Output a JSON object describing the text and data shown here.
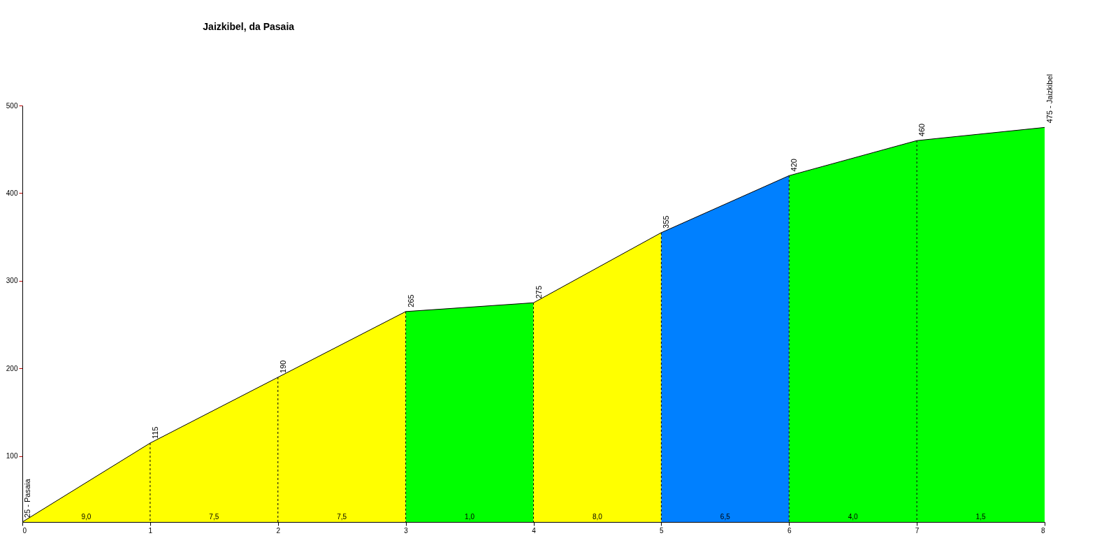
{
  "chart_data": {
    "type": "area",
    "title": "Jaizkibel, da Pasaia",
    "xlim": [
      0,
      8
    ],
    "xticks": [
      0,
      1,
      2,
      3,
      4,
      5,
      6,
      7,
      8
    ],
    "ylim": [
      25,
      500
    ],
    "yticks": [
      100,
      200,
      300,
      400,
      500
    ],
    "grid": "x",
    "series": [
      {
        "color": "#ffff00",
        "x": [
          0,
          1
        ],
        "values": [
          25,
          115
        ]
      },
      {
        "color": "#ffff00",
        "x": [
          1,
          2
        ],
        "values": [
          115,
          190
        ]
      },
      {
        "color": "#ffff00",
        "x": [
          2,
          3
        ],
        "values": [
          190,
          265
        ]
      },
      {
        "color": "#00ff00",
        "x": [
          3,
          4
        ],
        "values": [
          265,
          275
        ]
      },
      {
        "color": "#ffff00",
        "x": [
          4,
          5
        ],
        "values": [
          275,
          355
        ]
      },
      {
        "color": "#0080ff",
        "x": [
          5,
          6
        ],
        "values": [
          355,
          420
        ]
      },
      {
        "color": "#00ff00",
        "x": [
          6,
          7
        ],
        "values": [
          420,
          460
        ]
      },
      {
        "color": "#00ff00",
        "x": [
          7,
          8
        ],
        "values": [
          460,
          475
        ]
      },
      {
        "type": "line",
        "color": "#000000",
        "x": [
          0,
          1,
          2,
          3,
          4,
          5,
          6,
          7,
          8
        ],
        "values": [
          25,
          115,
          190,
          265,
          275,
          355,
          420,
          460,
          475
        ],
        "value_labels": [
          "25 - Pasaia",
          "115",
          "190",
          "265",
          "275",
          "355",
          "420",
          "460",
          "475 - Jaizkibel"
        ]
      }
    ],
    "annotations": [
      {
        "text": "9,0",
        "x": 0.5,
        "y": 25
      },
      {
        "text": "7,5",
        "x": 1.5,
        "y": 25
      },
      {
        "text": "7,5",
        "x": 2.5,
        "y": 25
      },
      {
        "text": "1,0",
        "x": 3.5,
        "y": 25
      },
      {
        "text": "8,0",
        "x": 4.5,
        "y": 25
      },
      {
        "text": "6,5",
        "x": 5.5,
        "y": 25
      },
      {
        "text": "4,0",
        "x": 6.5,
        "y": 25
      },
      {
        "text": "1,5",
        "x": 7.5,
        "y": 25
      }
    ]
  }
}
